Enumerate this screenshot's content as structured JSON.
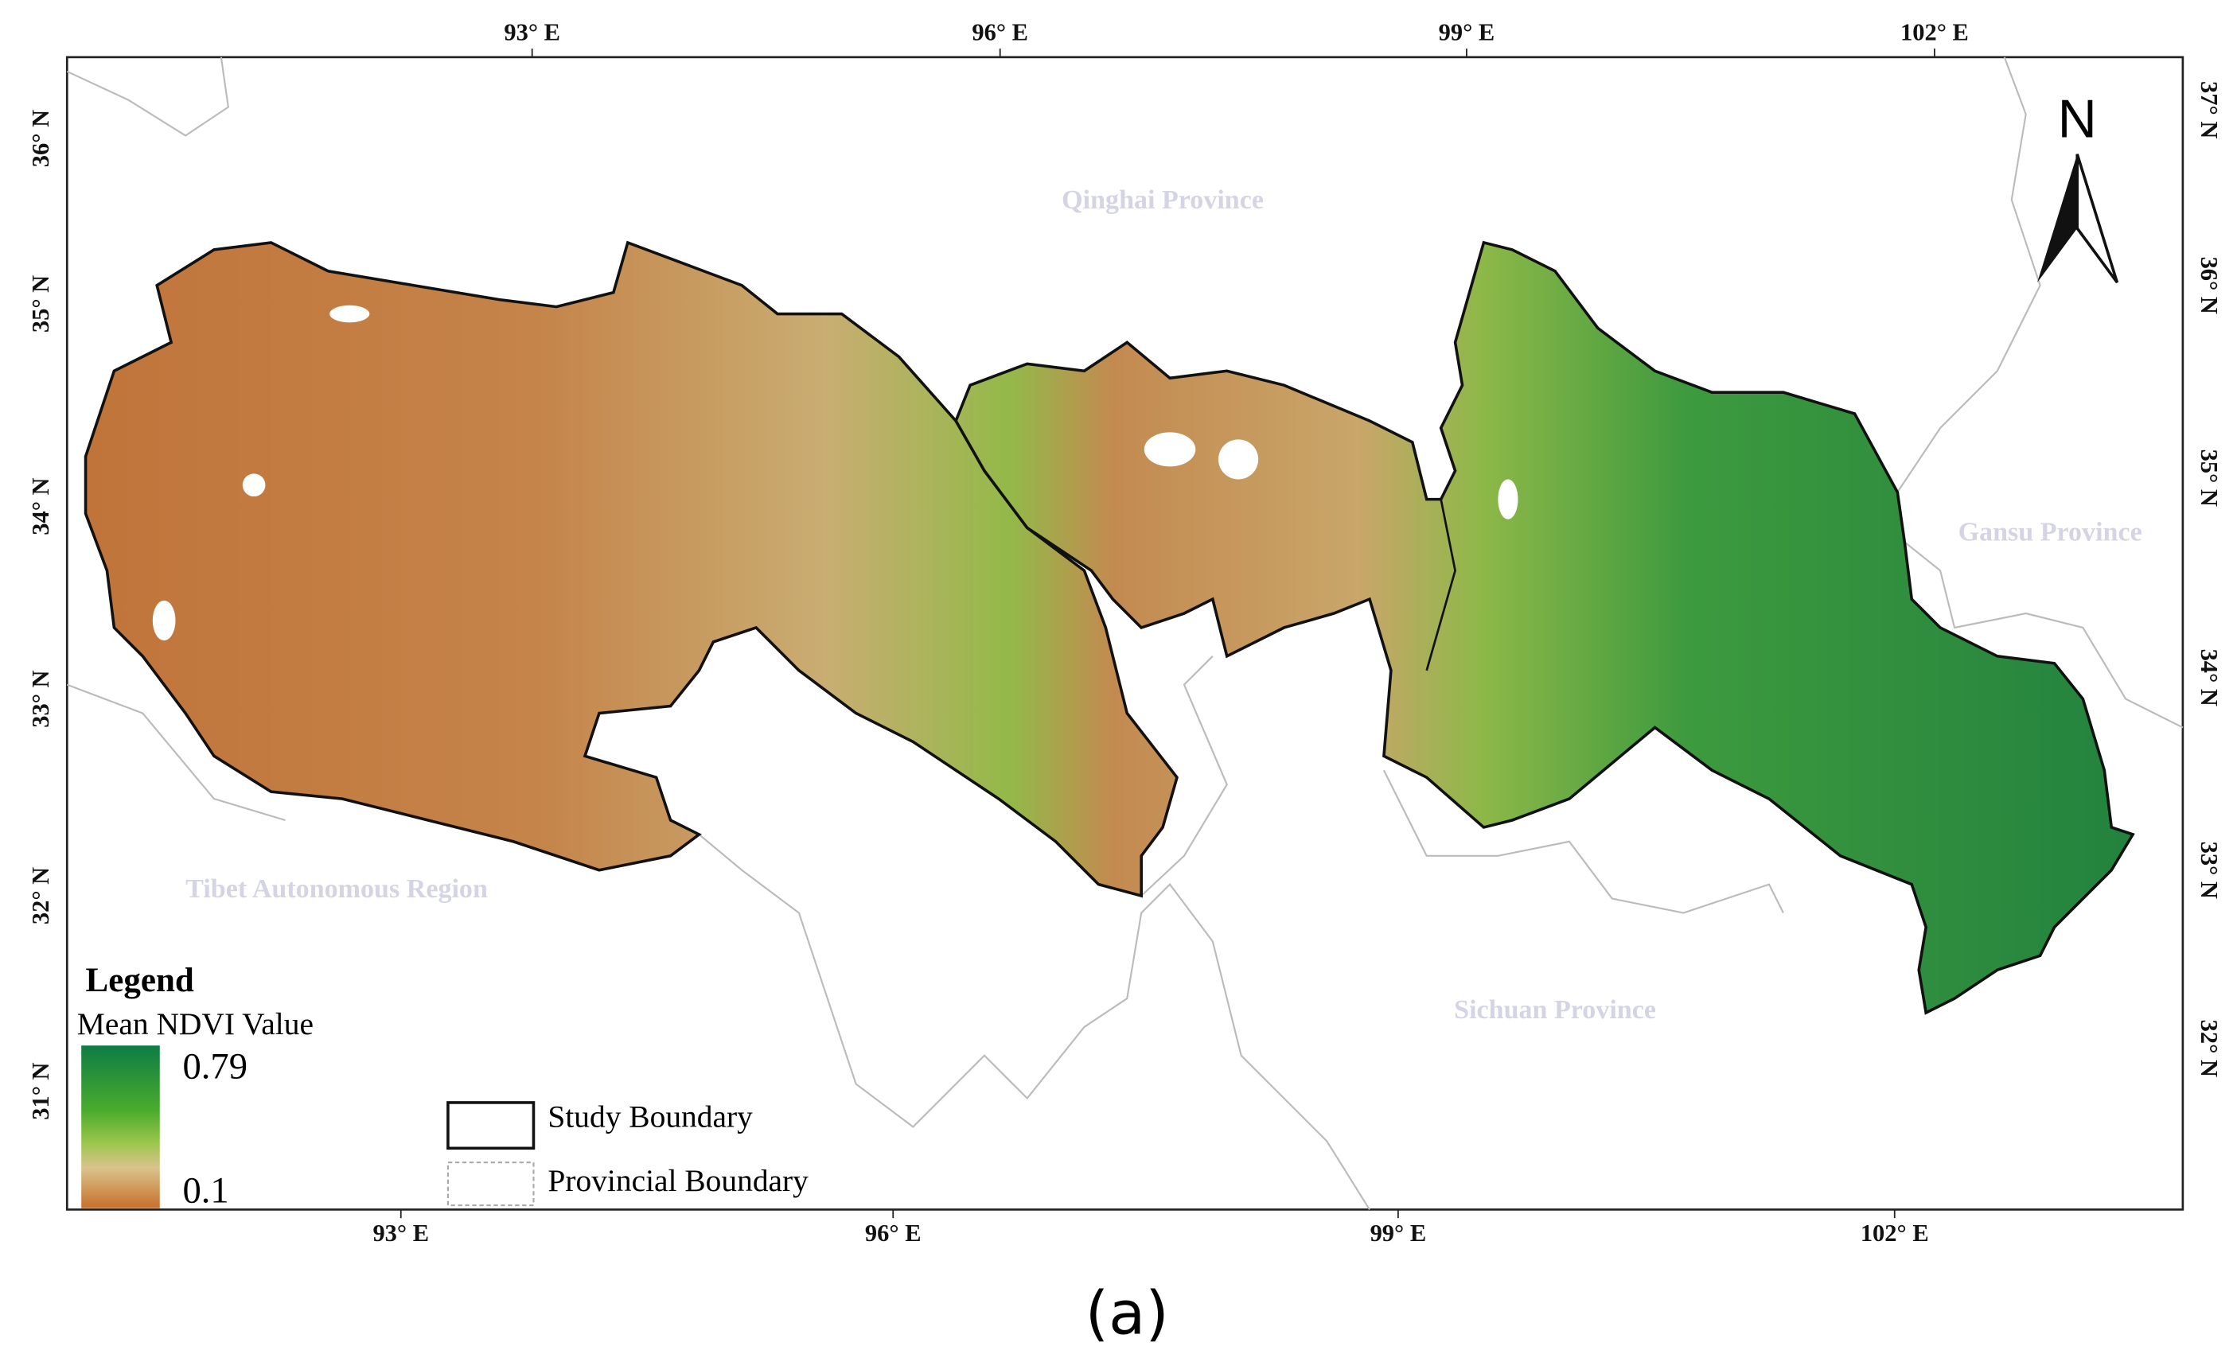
{
  "axes": {
    "top": [
      "93° E",
      "96° E",
      "99° E",
      "102° E"
    ],
    "bottom": [
      "93° E",
      "96° E",
      "99° E",
      "102° E"
    ],
    "left": [
      "36° N",
      "35° N",
      "34° N",
      "33° N",
      "32° N",
      "31° N"
    ],
    "right": [
      "37° N",
      "36° N",
      "35° N",
      "34° N",
      "33° N",
      "32° N"
    ]
  },
  "north": "N",
  "regions": [
    "Qinghai Province",
    "Gansu Province",
    "Tibet Autonomous Region",
    "Sichuan Province"
  ],
  "legend": {
    "title": "Legend",
    "subtitle": "Mean NDVI Value",
    "max": "0.79",
    "min": "0.1",
    "items": [
      "Study Boundary",
      "Provincial Boundary"
    ]
  },
  "caption": "(a)"
}
